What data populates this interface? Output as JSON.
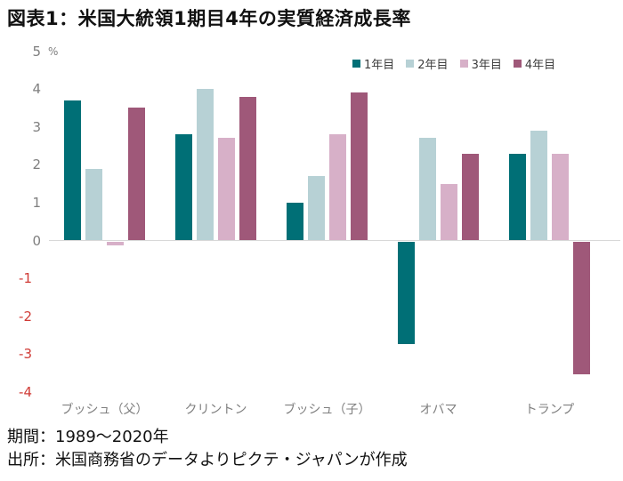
{
  "title": "図表1：米国大統領1期目4年の実質経済成長率",
  "footer": {
    "period": "期間：1989～2020年",
    "source": "出所：米国商務省のデータよりピクテ・ジャパンが作成"
  },
  "chart_data": {
    "type": "bar",
    "title": "図表1：米国大統領1期目4年の実質経済成長率",
    "categories": [
      "ブッシュ（父）",
      "クリントン",
      "ブッシュ（子）",
      "オバマ",
      "トランプ"
    ],
    "series": [
      {
        "name": "1年目",
        "color": "#006F76",
        "values": [
          3.7,
          2.8,
          1.0,
          -2.7,
          2.3
        ]
      },
      {
        "name": "2年目",
        "color": "#B7D1D5",
        "values": [
          1.9,
          4.0,
          1.7,
          2.7,
          2.9
        ]
      },
      {
        "name": "3年目",
        "color": "#D7B0C8",
        "values": [
          -0.1,
          2.7,
          2.8,
          1.5,
          2.3
        ]
      },
      {
        "name": "4年目",
        "color": "#9F5879",
        "values": [
          3.5,
          3.8,
          3.9,
          2.3,
          -3.5
        ]
      }
    ],
    "ylabel_unit": "%",
    "ylim": [
      -4,
      5
    ],
    "yticks": [
      5,
      4,
      3,
      2,
      1,
      0,
      -1,
      -2,
      -3,
      -4
    ],
    "grid": false,
    "legend_position": "top-right",
    "colors": {
      "positive_tick": "#7f7f7f",
      "negative_tick": "#D03B36",
      "axis_line": "#d8d8d8",
      "category_label": "#7f7f7f"
    }
  }
}
